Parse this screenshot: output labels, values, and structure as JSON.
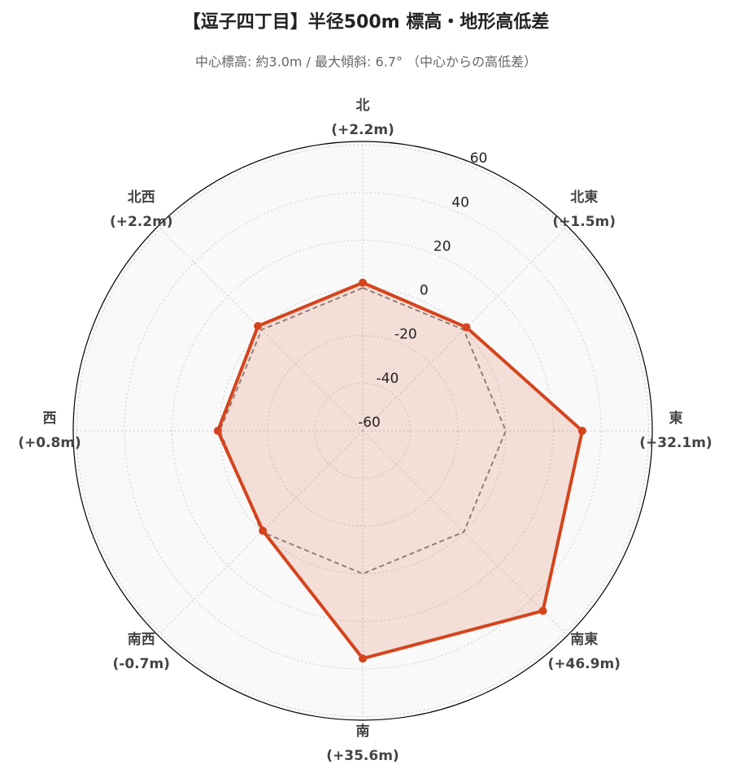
{
  "chart_data": {
    "type": "radar",
    "title": "【逗子四丁目】半径500m 標高・地形高低差",
    "subtitle": "中心標高: 約3.0m / 最大傾斜: 6.7° （中心からの高低差）",
    "categories": [
      "北",
      "北東",
      "東",
      "南東",
      "南",
      "南西",
      "西",
      "北西"
    ],
    "series": [
      {
        "color": "#d5441c",
        "values": [
          2.2,
          1.5,
          32.1,
          46.9,
          35.6,
          -0.7,
          0.8,
          2.2
        ],
        "value_labels": [
          "(+2.2m)",
          "(+1.5m)",
          "(+32.1m)",
          "(+46.9m)",
          "(+35.6m)",
          "(-0.7m)",
          "(+0.8m)",
          "(+2.2m)"
        ]
      }
    ],
    "baseline": {
      "value": 0,
      "color": "#888888"
    },
    "ylim": [
      -60,
      61.5
    ],
    "yticks": [
      -60,
      -40,
      -20,
      0,
      20,
      40,
      60
    ],
    "grid": true
  }
}
